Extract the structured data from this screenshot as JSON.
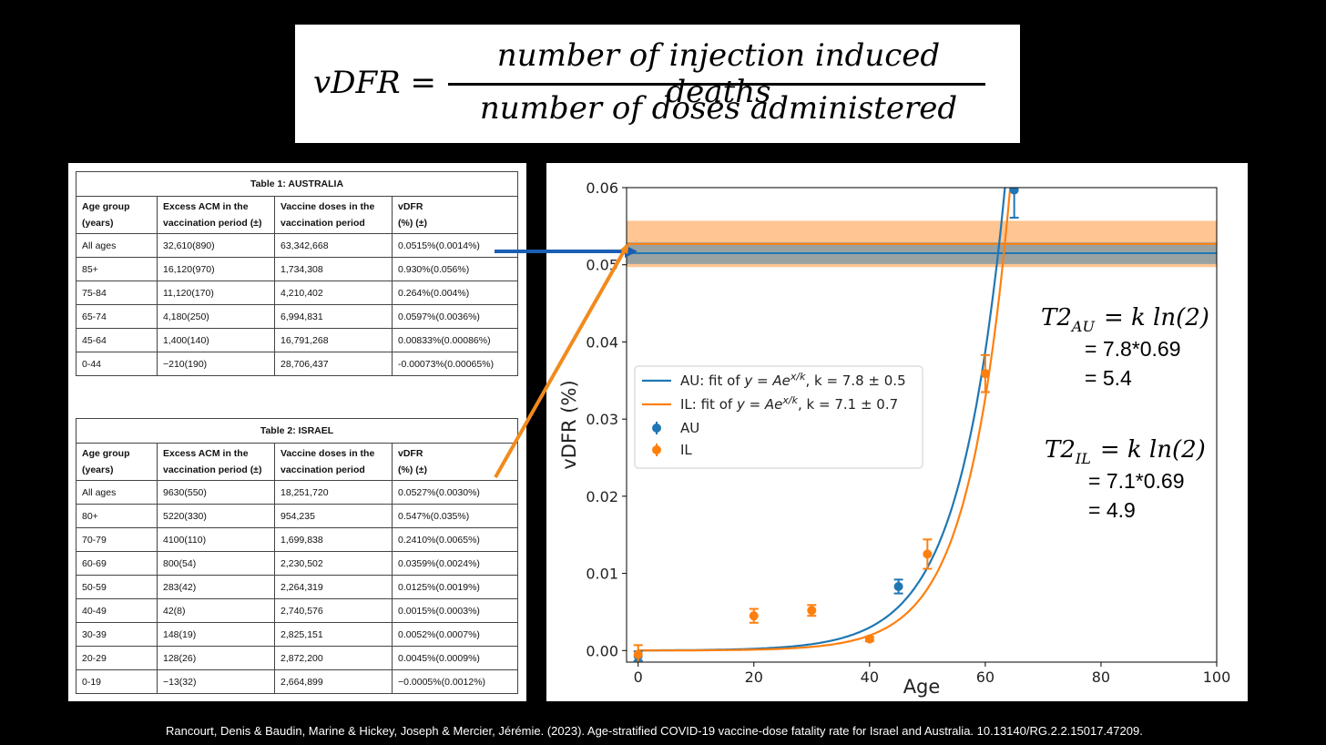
{
  "formula": {
    "lhs": "vDFR =",
    "numerator": "number of injection induced deaths",
    "denominator": "number of doses administered"
  },
  "table_au": {
    "caption": "Table 1: AUSTRALIA",
    "headers": [
      [
        "Age group",
        "(years)"
      ],
      [
        "Excess ACM in the",
        "vaccination period  (±)"
      ],
      [
        "Vaccine doses in the",
        "vaccination period"
      ],
      [
        "vDFR",
        "(%)  (±)"
      ]
    ],
    "rows": [
      [
        "All ages",
        "32,610(890)",
        "63,342,668",
        "0.0515%(0.0014%)"
      ],
      [
        "85+",
        "16,120(970)",
        "1,734,308",
        "0.930%(0.056%)"
      ],
      [
        "75-84",
        "11,120(170)",
        "4,210,402",
        "0.264%(0.004%)"
      ],
      [
        "65-74",
        "4,180(250)",
        "6,994,831",
        "0.0597%(0.0036%)"
      ],
      [
        "45-64",
        "1,400(140)",
        "16,791,268",
        "0.00833%(0.00086%)"
      ],
      [
        "0-44",
        "−210(190)",
        "28,706,437",
        "-0.00073%(0.00065%)"
      ]
    ]
  },
  "table_il": {
    "caption": "Table 2: ISRAEL",
    "headers": [
      [
        "Age group",
        "(years)"
      ],
      [
        "Excess ACM in the",
        "vaccination period  (±)"
      ],
      [
        "Vaccine doses in the",
        "vaccination period"
      ],
      [
        "vDFR",
        "(%)  (±)"
      ]
    ],
    "rows": [
      [
        "All ages",
        "9630(550)",
        "18,251,720",
        "0.0527%(0.0030%)"
      ],
      [
        "80+",
        "5220(330)",
        "954,235",
        "0.547%(0.035%)"
      ],
      [
        "70-79",
        "4100(110)",
        "1,699,838",
        "0.2410%(0.0065%)"
      ],
      [
        "60-69",
        "800(54)",
        "2,230,502",
        "0.0359%(0.0024%)"
      ],
      [
        "50-59",
        "283(42)",
        "2,264,319",
        "0.0125%(0.0019%)"
      ],
      [
        "40-49",
        "42(8)",
        "2,740,576",
        "0.0015%(0.0003%)"
      ],
      [
        "30-39",
        "148(19)",
        "2,825,151",
        "0.0052%(0.0007%)"
      ],
      [
        "20-29",
        "128(26)",
        "2,872,200",
        "0.0045%(0.0009%)"
      ],
      [
        "0-19",
        "−13(32)",
        "2,664,899",
        "−0.0005%(0.0012%)"
      ]
    ]
  },
  "chart_data": {
    "type": "scatter",
    "xlabel": "Age",
    "ylabel": "vDFR (%)",
    "xlim": [
      -2,
      100
    ],
    "ylim": [
      -0.0015,
      0.06
    ],
    "xticks": [
      0,
      20,
      40,
      60,
      80,
      100
    ],
    "yticks": [
      0.0,
      0.01,
      0.02,
      0.03,
      0.04,
      0.05,
      0.06
    ],
    "ytick_labels": [
      "0.00",
      "0.01",
      "0.02",
      "0.03",
      "0.04",
      "0.05",
      "0.06"
    ],
    "grid": false,
    "legend_position": "center-left",
    "colors": {
      "AU": "#1f77b4",
      "IL": "#ff7f0e"
    },
    "series": [
      {
        "name": "AU",
        "points": [
          {
            "x": 0,
            "y": -0.0007,
            "err": 0.0006
          },
          {
            "x": 45,
            "y": 0.0083,
            "err": 0.0009
          },
          {
            "x": 65,
            "y": 0.0597,
            "err": 0.0036
          }
        ]
      },
      {
        "name": "IL",
        "points": [
          {
            "x": 0,
            "y": -0.0005,
            "err": 0.0012
          },
          {
            "x": 20,
            "y": 0.0045,
            "err": 0.0009
          },
          {
            "x": 30,
            "y": 0.0052,
            "err": 0.0007
          },
          {
            "x": 40,
            "y": 0.0015,
            "err": 0.0003
          },
          {
            "x": 50,
            "y": 0.0125,
            "err": 0.0019
          },
          {
            "x": 60,
            "y": 0.0359,
            "err": 0.0024
          }
        ]
      }
    ],
    "fits": [
      {
        "series": "AU",
        "label_prefix": "AU: fit of ",
        "k": 7.8,
        "k_text": "k = 7.8 ± 0.5",
        "A": 1.77e-05
      },
      {
        "series": "IL",
        "label_prefix": "IL: fit of ",
        "k": 7.1,
        "k_text": "k = 7.1 ± 0.7",
        "A": 7e-06
      }
    ],
    "fit_formula": "y = Ae",
    "fit_exponent": "x/k",
    "all_ages": [
      {
        "series": "AU",
        "y": 0.0515,
        "err": 0.0014
      },
      {
        "series": "IL",
        "y": 0.0527,
        "err": 0.003
      }
    ]
  },
  "annotations": {
    "t2_au": {
      "lhs": "T2",
      "sub": "AU",
      "rhs": "= k ln(2)",
      "line1": "= 7.8*0.69",
      "line2": "= 5.4"
    },
    "t2_il": {
      "lhs": "T2",
      "sub": "IL",
      "rhs": "= k ln(2)",
      "line1": "= 7.1*0.69",
      "line2": "= 4.9"
    },
    "arrow_colors": {
      "au": "#1a5fb4",
      "il": "#f28a1c"
    }
  },
  "citation": "Rancourt, Denis & Baudin, Marine & Hickey, Joseph & Mercier, Jérémie. (2023). Age-stratified COVID-19 vaccine-dose fatality rate for Israel and Australia. 10.13140/RG.2.2.15017.47209."
}
